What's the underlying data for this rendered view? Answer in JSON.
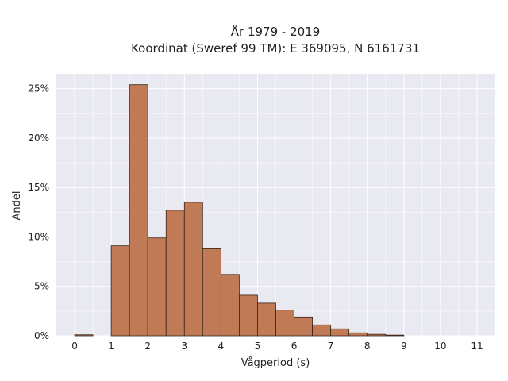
{
  "chart_data": {
    "type": "bar",
    "title": "År 1979 - 2019",
    "subtitle": "Koordinat (Sweref 99 TM): E 369095, N 6161731",
    "xlabel": "Vågperiod (s)",
    "ylabel": "Andel",
    "xlim": [
      -0.5,
      11.5
    ],
    "ylim": [
      0,
      0.265
    ],
    "x_ticks": [
      0,
      1,
      2,
      3,
      4,
      5,
      6,
      7,
      8,
      9,
      10,
      11
    ],
    "y_ticks": [
      0,
      0.05,
      0.1,
      0.15,
      0.2,
      0.25
    ],
    "y_tick_labels": [
      "0%",
      "5%",
      "10%",
      "15%",
      "20%",
      "25%"
    ],
    "bin_width": 0.5,
    "bins": [
      {
        "start": 0.0,
        "value": 0.001
      },
      {
        "start": 1.0,
        "value": 0.091
      },
      {
        "start": 1.5,
        "value": 0.254
      },
      {
        "start": 2.0,
        "value": 0.099
      },
      {
        "start": 2.5,
        "value": 0.127
      },
      {
        "start": 3.0,
        "value": 0.135
      },
      {
        "start": 3.5,
        "value": 0.088
      },
      {
        "start": 4.0,
        "value": 0.062
      },
      {
        "start": 4.5,
        "value": 0.041
      },
      {
        "start": 5.0,
        "value": 0.033
      },
      {
        "start": 5.5,
        "value": 0.026
      },
      {
        "start": 6.0,
        "value": 0.019
      },
      {
        "start": 6.5,
        "value": 0.011
      },
      {
        "start": 7.0,
        "value": 0.007
      },
      {
        "start": 7.5,
        "value": 0.003
      },
      {
        "start": 8.0,
        "value": 0.0015
      },
      {
        "start": 8.5,
        "value": 0.0007
      }
    ],
    "grid": true,
    "colors": {
      "bar": "#c07a55",
      "bar_edge": "#3a2418",
      "plot_background": "#e9e9f2",
      "grid": "#ffffff"
    }
  }
}
